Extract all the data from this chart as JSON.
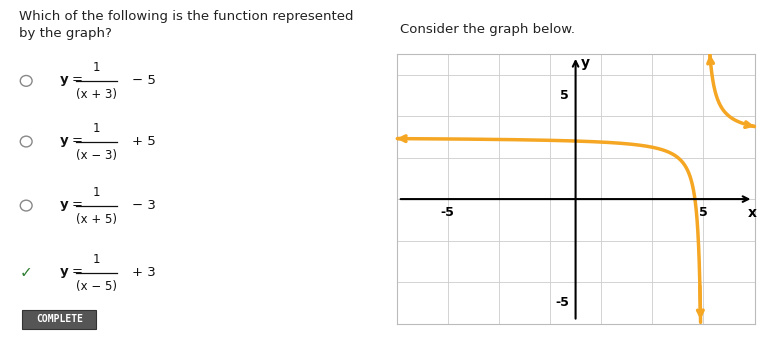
{
  "question_text": "Which of the following is the function represented\nby the graph?",
  "consider_text": "Consider the graph below.",
  "options": [
    {
      "numerator": "1",
      "denominator": "(x + 3)",
      "constant": "− 5",
      "correct": false
    },
    {
      "numerator": "1",
      "denominator": "(x − 3)",
      "constant": "+ 5",
      "correct": false
    },
    {
      "numerator": "1",
      "denominator": "(x + 5)",
      "constant": "− 3",
      "correct": false
    },
    {
      "numerator": "1",
      "denominator": "(x − 5)",
      "constant": "+ 3",
      "correct": true
    }
  ],
  "complete_label": "COMPLETE",
  "graph": {
    "xlim": [
      -7,
      7
    ],
    "ylim": [
      -6,
      7
    ],
    "xtick_labels": [
      [
        -5,
        "-5"
      ],
      [
        5,
        "5"
      ]
    ],
    "ytick_labels": [
      [
        5,
        "5"
      ],
      [
        -5,
        "-5"
      ]
    ],
    "xlabel": "x",
    "ylabel": "y",
    "curve_color": "#F5A623",
    "curve_linewidth": 2.5,
    "vertical_asymptote": 5,
    "horizontal_asymptote": 3,
    "grid_color": "#cccccc",
    "grid_step": 2,
    "axis_color": "#000000",
    "background_color": "#ffffff"
  }
}
